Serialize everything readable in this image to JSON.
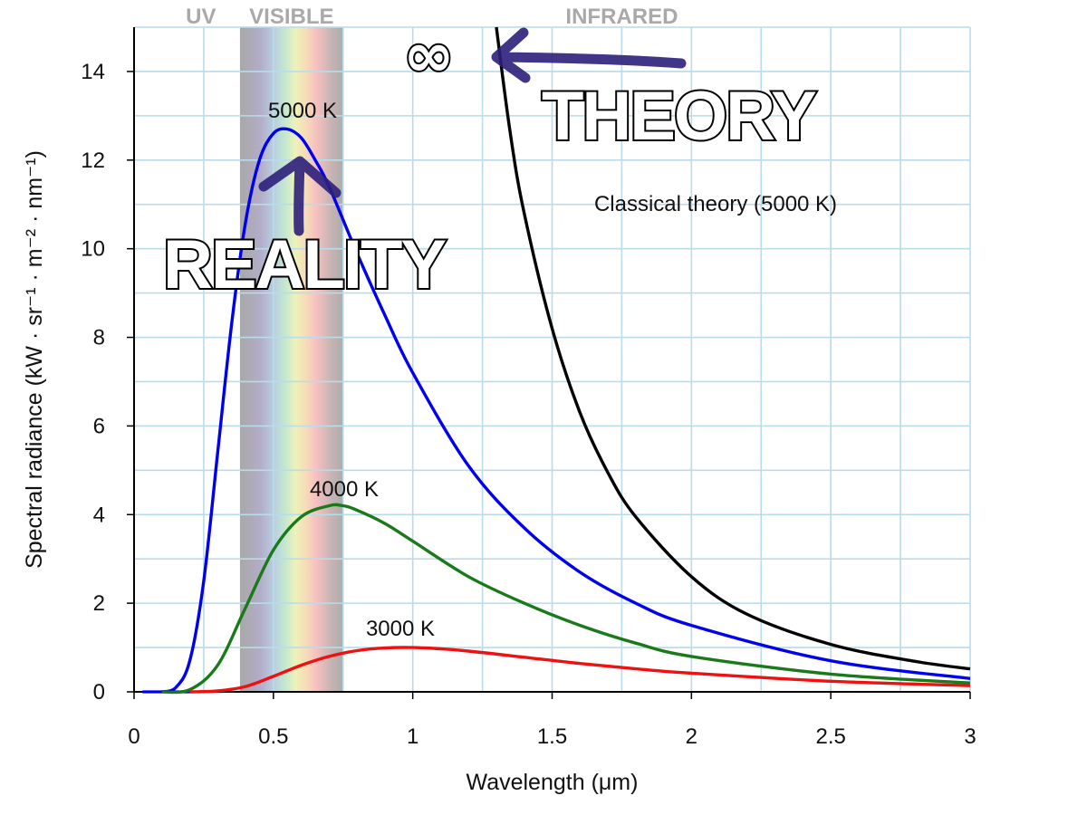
{
  "chart_data": {
    "type": "line",
    "xlabel": "Wavelength (μm)",
    "ylabel": "Spectral radiance (kW · sr⁻¹ · m⁻² · nm⁻¹)",
    "xlim": [
      0,
      3
    ],
    "ylim": [
      0,
      15
    ],
    "x_ticks": [
      "0",
      "0.5",
      "1",
      "1.5",
      "2",
      "2.5",
      "3"
    ],
    "y_ticks": [
      "0",
      "2",
      "4",
      "6",
      "8",
      "10",
      "12",
      "14"
    ],
    "grid": true,
    "regions": [
      {
        "label": "UV",
        "x_end": 0.38
      },
      {
        "label": "VISIBLE",
        "x_start": 0.38,
        "x_end": 0.75
      },
      {
        "label": "INFRARED",
        "x_start": 0.75
      }
    ],
    "series": [
      {
        "name": "5000 K",
        "color": "#0000ee",
        "x": [
          0.1,
          0.15,
          0.2,
          0.25,
          0.3,
          0.35,
          0.4,
          0.45,
          0.5,
          0.55,
          0.6,
          0.65,
          0.7,
          0.8,
          0.9,
          1.0,
          1.2,
          1.4,
          1.6,
          1.8,
          2.0,
          2.5,
          3.0
        ],
        "y": [
          0.0,
          0.1,
          0.7,
          2.5,
          5.4,
          8.3,
          10.6,
          12.0,
          12.6,
          12.7,
          12.5,
          12.0,
          11.4,
          9.9,
          8.5,
          7.2,
          5.1,
          3.7,
          2.7,
          2.0,
          1.5,
          0.7,
          0.3
        ]
      },
      {
        "name": "4000 K",
        "color": "#1a7a1a",
        "x": [
          0.1,
          0.2,
          0.3,
          0.4,
          0.5,
          0.6,
          0.7,
          0.75,
          0.8,
          0.9,
          1.0,
          1.2,
          1.4,
          1.6,
          1.8,
          2.0,
          2.5,
          3.0
        ],
        "y": [
          0.0,
          0.05,
          0.6,
          1.9,
          3.2,
          3.95,
          4.2,
          4.2,
          4.1,
          3.8,
          3.4,
          2.6,
          2.0,
          1.5,
          1.1,
          0.8,
          0.4,
          0.2
        ]
      },
      {
        "name": "3000 K",
        "color": "#ee1111",
        "x": [
          0.2,
          0.3,
          0.4,
          0.5,
          0.6,
          0.7,
          0.8,
          0.9,
          1.0,
          1.1,
          1.2,
          1.4,
          1.6,
          1.8,
          2.0,
          2.5,
          3.0
        ],
        "y": [
          0.0,
          0.02,
          0.12,
          0.35,
          0.6,
          0.8,
          0.93,
          0.99,
          1.0,
          0.97,
          0.92,
          0.78,
          0.64,
          0.52,
          0.42,
          0.24,
          0.14
        ]
      },
      {
        "name": "Classical theory (5000 K)",
        "color": "#000000",
        "x": [
          1.3,
          1.35,
          1.4,
          1.5,
          1.6,
          1.7,
          1.8,
          2.0,
          2.2,
          2.5,
          2.8,
          3.0
        ],
        "y": [
          15.0,
          12.6,
          10.8,
          8.2,
          6.3,
          4.95,
          3.95,
          2.6,
          1.75,
          1.07,
          0.69,
          0.52
        ]
      }
    ],
    "annotations": [
      "5000 K",
      "4000 K",
      "3000 K",
      "Classical theory (5000 K)"
    ]
  },
  "overlay": {
    "infinity": "∞",
    "theory": "THEORY",
    "reality": "REALITY"
  }
}
